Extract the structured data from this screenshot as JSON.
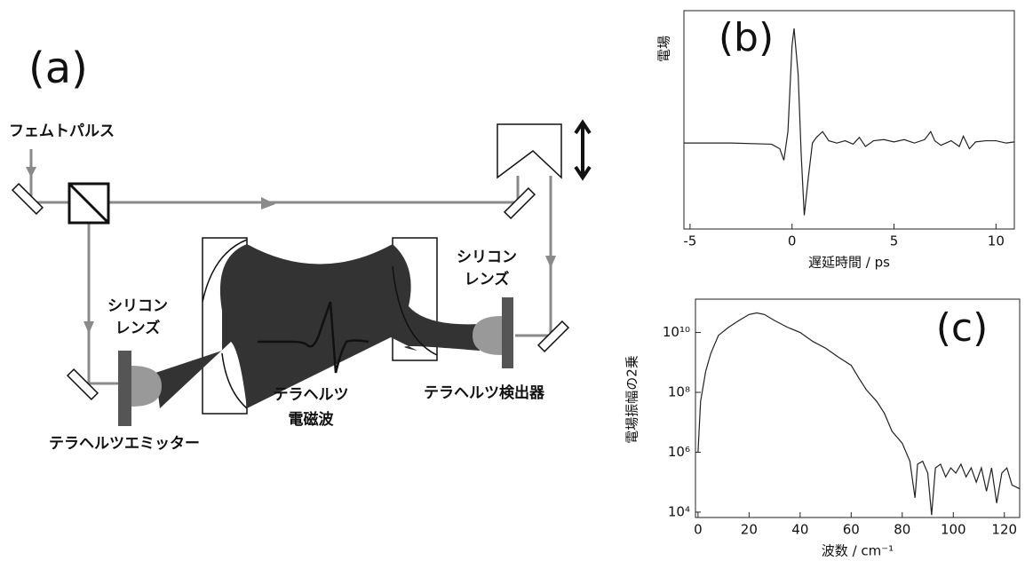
{
  "diagram": {
    "panel_label": "(a)",
    "pulse_label": "フェムトパルス",
    "emitter_lens_label": [
      "シリコン",
      "レンズ"
    ],
    "emitter_label": "テラヘルツエミッター",
    "wave_label": [
      "テラヘルツ",
      "電磁波"
    ],
    "detector_lens_label": [
      "シリコン",
      "レンズ"
    ],
    "detector_label": "テラヘルツ検出器"
  },
  "chart_data": [
    {
      "type": "line",
      "panel_label": "(b)",
      "ylabel": "電場",
      "xlabel": "遅延時間 / ps",
      "xlim": [
        -5.3,
        10.9
      ],
      "xticks": [
        -5,
        0,
        5,
        10
      ],
      "ylim": [
        -0.75,
        1.155
      ],
      "color": "#222222",
      "x": [
        -5.3,
        -3,
        -1,
        -0.6,
        -0.4,
        -0.2,
        0,
        0.1,
        0.3,
        0.45,
        0.6,
        0.8,
        1.0,
        1.2,
        1.5,
        1.8,
        2.2,
        2.6,
        3.0,
        3.3,
        3.6,
        4.0,
        4.5,
        5.0,
        5.5,
        6.0,
        6.5,
        6.8,
        7.0,
        7.3,
        7.8,
        8.2,
        8.4,
        8.7,
        9.0,
        9.5,
        10,
        10.5,
        10.9
      ],
      "values": [
        0,
        0,
        -0.01,
        -0.05,
        -0.15,
        0.1,
        0.85,
        1.0,
        0.6,
        -0.1,
        -0.63,
        -0.3,
        0,
        0.05,
        0.1,
        0.02,
        0,
        0.02,
        -0.01,
        0.05,
        -0.03,
        0.02,
        0.03,
        0.01,
        0.03,
        0,
        0.03,
        0.1,
        0.02,
        -0.02,
        0.02,
        -0.03,
        0.06,
        -0.05,
        0.01,
        0.02,
        0.02,
        0,
        0.01
      ]
    },
    {
      "type": "line",
      "panel_label": "(c)",
      "ylabel": "電場振幅の2乗",
      "xlabel": "波数 / cm⁻¹",
      "log_y": true,
      "xlim": [
        -1,
        126
      ],
      "xticks": [
        0,
        20,
        40,
        60,
        80,
        100,
        120
      ],
      "ylim": [
        6600,
        130000000000
      ],
      "color": "#222222",
      "yticks": [
        {
          "value": 10000,
          "label": "10⁴"
        },
        {
          "value": 1000000,
          "label": "10⁶"
        },
        {
          "value": 100000000,
          "label": "10⁸"
        },
        {
          "value": 10000000000,
          "label": "10¹⁰"
        }
      ],
      "x": [
        0,
        1,
        3,
        5,
        8,
        12,
        16,
        20,
        23,
        26,
        30,
        35,
        40,
        45,
        50,
        55,
        60,
        63,
        66,
        70,
        73,
        76,
        80,
        83,
        85,
        86,
        88,
        90,
        91.5,
        93,
        95,
        97,
        99,
        101,
        103,
        105,
        107,
        109,
        111,
        113,
        115,
        117,
        119,
        121,
        123,
        126
      ],
      "values": [
        1000000,
        50000000,
        500000000,
        2000000000,
        8000000000,
        15000000000,
        25000000000,
        40000000000,
        45000000000,
        40000000000,
        25000000000,
        15000000000,
        10000000000,
        5000000000,
        3000000000,
        1500000000,
        800000000,
        300000000,
        120000000,
        50000000,
        20000000,
        5000000,
        2000000,
        500000,
        30000,
        400000,
        500000,
        200000,
        8000,
        300000,
        400000,
        150000,
        300000,
        200000,
        400000,
        150000,
        300000,
        100000,
        300000,
        50000,
        300000,
        20000,
        200000,
        300000,
        80000,
        60000
      ]
    }
  ]
}
